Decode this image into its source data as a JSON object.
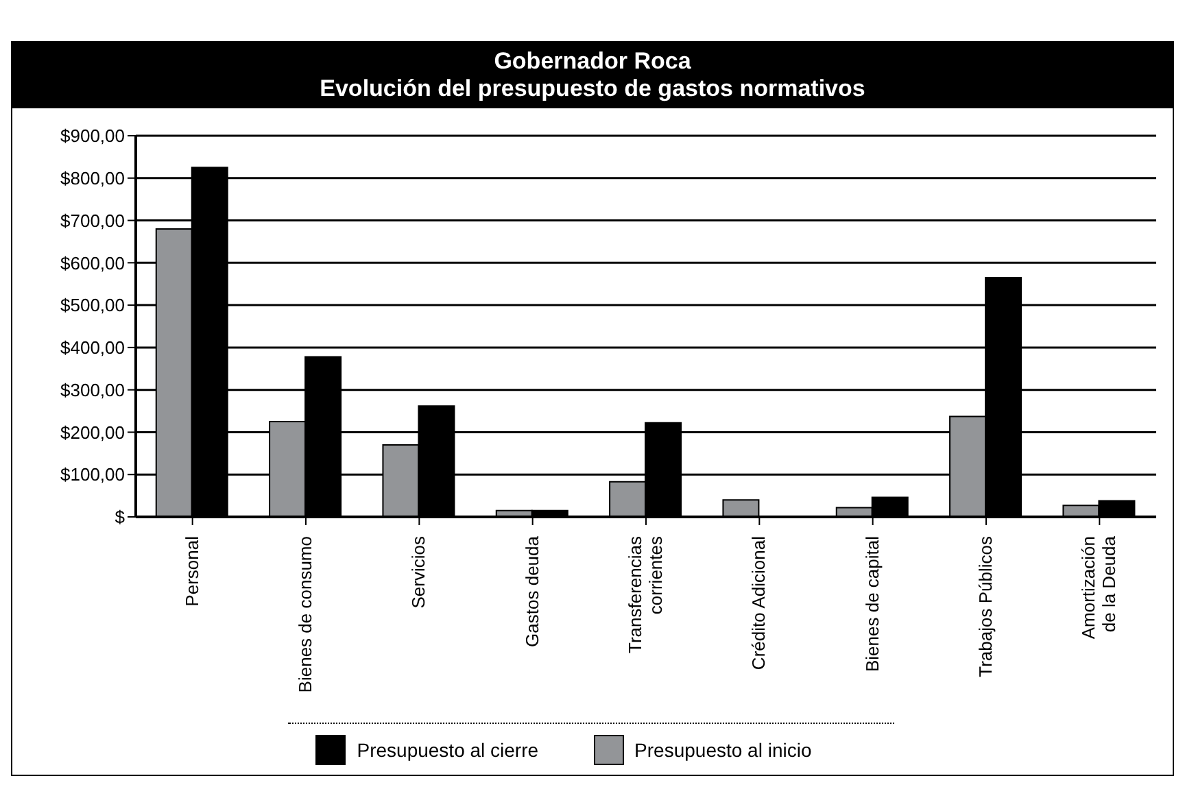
{
  "chart_data": {
    "type": "bar",
    "title": "Gobernador Roca",
    "subtitle": "Evolución del presupuesto de gastos normativos",
    "categories": [
      "Personal",
      "Bienes de consumo",
      "Servicios",
      "Gastos deuda",
      "Transferencias\ncorrientes",
      "Crédito Adicional",
      "Bienes de capital",
      "Trabajos Públicos",
      "Amortización\nde la Deuda"
    ],
    "series": [
      {
        "name": "Presupuesto al inicio",
        "color": "#939598",
        "values": [
          680,
          225,
          170,
          15,
          83,
          40,
          22,
          237,
          27
        ]
      },
      {
        "name": "Presupuesto al cierre",
        "color": "#000000",
        "values": [
          825,
          378,
          262,
          15,
          222,
          null,
          46,
          565,
          38
        ]
      }
    ],
    "ylim": [
      0,
      900
    ],
    "yticks": [
      {
        "value": 0,
        "label": "$"
      },
      {
        "value": 100,
        "label": "$100,00"
      },
      {
        "value": 200,
        "label": "$200,00"
      },
      {
        "value": 300,
        "label": "$300,00"
      },
      {
        "value": 400,
        "label": "$400,00"
      },
      {
        "value": 500,
        "label": "$500,00"
      },
      {
        "value": 600,
        "label": "$600,00"
      },
      {
        "value": 700,
        "label": "$700,00"
      },
      {
        "value": 800,
        "label": "$800,00"
      },
      {
        "value": 900,
        "label": "$900,00"
      }
    ],
    "grid": "y",
    "legend": "bottom"
  }
}
